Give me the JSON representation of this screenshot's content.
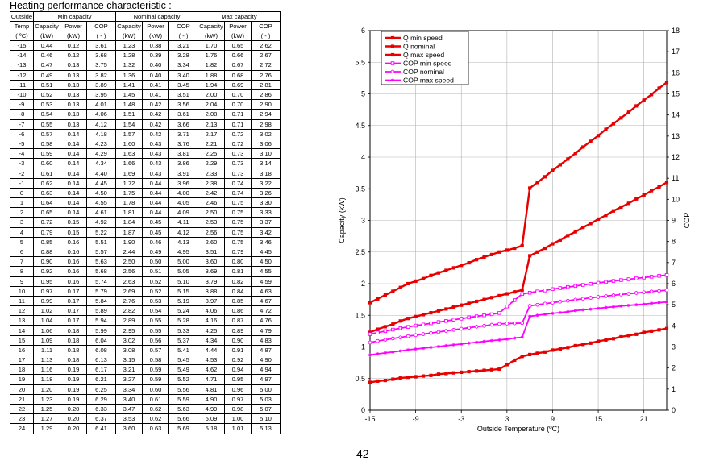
{
  "page_title": "Heating performance  characteristic  :",
  "page_number": "42",
  "table": {
    "group_headers": [
      "Outside",
      "Min capacity",
      "Nominal capacity",
      "Max capacity"
    ],
    "col_headers": [
      "Temp",
      "Capacity",
      "Power",
      "COP",
      "Capacity",
      "Power",
      "COP",
      "Capacity",
      "Power",
      "COP"
    ],
    "unit_headers": [
      "( ºC)",
      "(kW)",
      "(kW)",
      "( - )",
      "(kW)",
      "(kW)",
      "( - )",
      "(kW)",
      "(kW)",
      "( - )"
    ],
    "rows": [
      [
        "-15",
        "0.44",
        "0.12",
        "3.61",
        "1.23",
        "0.38",
        "3.21",
        "1.70",
        "0.65",
        "2.62"
      ],
      [
        "-14",
        "0.46",
        "0.12",
        "3.68",
        "1.28",
        "0.39",
        "3.28",
        "1.76",
        "0.66",
        "2.67"
      ],
      [
        "-13",
        "0.47",
        "0.13",
        "3.75",
        "1.32",
        "0.40",
        "3.34",
        "1.82",
        "0.67",
        "2.72"
      ],
      [
        "-12",
        "0.49",
        "0.13",
        "3.82",
        "1.36",
        "0.40",
        "3.40",
        "1.88",
        "0.68",
        "2.76"
      ],
      [
        "-11",
        "0.51",
        "0.13",
        "3.89",
        "1.41",
        "0.41",
        "3.45",
        "1.94",
        "0.69",
        "2.81"
      ],
      [
        "-10",
        "0.52",
        "0.13",
        "3.95",
        "1.45",
        "0.41",
        "3.51",
        "2.00",
        "0.70",
        "2.86"
      ],
      [
        "-9",
        "0.53",
        "0.13",
        "4.01",
        "1.48",
        "0.42",
        "3.56",
        "2.04",
        "0.70",
        "2.90"
      ],
      [
        "-8",
        "0.54",
        "0.13",
        "4.06",
        "1.51",
        "0.42",
        "3.61",
        "2.08",
        "0.71",
        "2.94"
      ],
      [
        "-7",
        "0.55",
        "0.13",
        "4.12",
        "1.54",
        "0.42",
        "3.66",
        "2.13",
        "0.71",
        "2.98"
      ],
      [
        "-6",
        "0.57",
        "0.14",
        "4.18",
        "1.57",
        "0.42",
        "3.71",
        "2.17",
        "0.72",
        "3.02"
      ],
      [
        "-5",
        "0.58",
        "0.14",
        "4.23",
        "1.60",
        "0.43",
        "3.76",
        "2.21",
        "0.72",
        "3.06"
      ],
      [
        "-4",
        "0.59",
        "0.14",
        "4.29",
        "1.63",
        "0.43",
        "3.81",
        "2.25",
        "0.73",
        "3.10"
      ],
      [
        "-3",
        "0.60",
        "0.14",
        "4.34",
        "1.66",
        "0.43",
        "3.86",
        "2.29",
        "0.73",
        "3.14"
      ],
      [
        "-2",
        "0.61",
        "0.14",
        "4.40",
        "1.69",
        "0.43",
        "3.91",
        "2.33",
        "0.73",
        "3.18"
      ],
      [
        "-1",
        "0.62",
        "0.14",
        "4.45",
        "1.72",
        "0.44",
        "3.96",
        "2.38",
        "0.74",
        "3.22"
      ],
      [
        "0",
        "0.63",
        "0.14",
        "4.50",
        "1.75",
        "0.44",
        "4.00",
        "2.42",
        "0.74",
        "3.26"
      ],
      [
        "1",
        "0.64",
        "0.14",
        "4.55",
        "1.78",
        "0.44",
        "4.05",
        "2.46",
        "0.75",
        "3.30"
      ],
      [
        "2",
        "0.65",
        "0.14",
        "4.61",
        "1.81",
        "0.44",
        "4.09",
        "2.50",
        "0.75",
        "3.33"
      ],
      [
        "3",
        "0.72",
        "0.15",
        "4.92",
        "1.84",
        "0.45",
        "4.11",
        "2.53",
        "0.75",
        "3.37"
      ],
      [
        "4",
        "0.79",
        "0.15",
        "5.22",
        "1.87",
        "0.45",
        "4.12",
        "2.56",
        "0.75",
        "3.42"
      ],
      [
        "5",
        "0.85",
        "0.16",
        "5.51",
        "1.90",
        "0.46",
        "4.13",
        "2.60",
        "0.75",
        "3.46"
      ],
      [
        "6",
        "0.88",
        "0.16",
        "5.57",
        "2.44",
        "0.49",
        "4.95",
        "3.51",
        "0.79",
        "4.45"
      ],
      [
        "7",
        "0.90",
        "0.16",
        "5.63",
        "2.50",
        "0.50",
        "5.00",
        "3.60",
        "0.80",
        "4.50"
      ],
      [
        "8",
        "0.92",
        "0.16",
        "5.68",
        "2.56",
        "0.51",
        "5.05",
        "3.69",
        "0.81",
        "4.55"
      ],
      [
        "9",
        "0.95",
        "0.16",
        "5.74",
        "2.63",
        "0.52",
        "5.10",
        "3.79",
        "0.82",
        "4.59"
      ],
      [
        "10",
        "0.97",
        "0.17",
        "5.79",
        "2.69",
        "0.52",
        "5.15",
        "3.88",
        "0.84",
        "4.63"
      ],
      [
        "11",
        "0.99",
        "0.17",
        "5.84",
        "2.76",
        "0.53",
        "5.19",
        "3.97",
        "0.85",
        "4.67"
      ],
      [
        "12",
        "1.02",
        "0.17",
        "5.89",
        "2.82",
        "0.54",
        "5.24",
        "4.06",
        "0.86",
        "4.72"
      ],
      [
        "13",
        "1.04",
        "0.17",
        "5.94",
        "2.89",
        "0.55",
        "5.28",
        "4.16",
        "0.87",
        "4.76"
      ],
      [
        "14",
        "1.06",
        "0.18",
        "5.99",
        "2.95",
        "0.55",
        "5.33",
        "4.25",
        "0.89",
        "4.79"
      ],
      [
        "15",
        "1.09",
        "0.18",
        "6.04",
        "3.02",
        "0.56",
        "5.37",
        "4.34",
        "0.90",
        "4.83"
      ],
      [
        "16",
        "1.11",
        "0.18",
        "6.08",
        "3.08",
        "0.57",
        "5.41",
        "4.44",
        "0.91",
        "4.87"
      ],
      [
        "17",
        "1.13",
        "0.18",
        "6.13",
        "3.15",
        "0.58",
        "5.45",
        "4.53",
        "0.92",
        "4.90"
      ],
      [
        "18",
        "1.16",
        "0.19",
        "6.17",
        "3.21",
        "0.59",
        "5.49",
        "4.62",
        "0.94",
        "4.94"
      ],
      [
        "19",
        "1.18",
        "0.19",
        "6.21",
        "3.27",
        "0.59",
        "5.52",
        "4.71",
        "0.95",
        "4.97"
      ],
      [
        "20",
        "1.20",
        "0.19",
        "6.25",
        "3.34",
        "0.60",
        "5.56",
        "4.81",
        "0.96",
        "5.00"
      ],
      [
        "21",
        "1.23",
        "0.19",
        "6.29",
        "3.40",
        "0.61",
        "5.59",
        "4.90",
        "0.97",
        "5.03"
      ],
      [
        "22",
        "1.25",
        "0.20",
        "6.33",
        "3.47",
        "0.62",
        "5.63",
        "4.99",
        "0.98",
        "5.07"
      ],
      [
        "23",
        "1.27",
        "0.20",
        "6.37",
        "3.53",
        "0.62",
        "5.66",
        "5.09",
        "1.00",
        "5.10"
      ],
      [
        "24",
        "1.29",
        "0.20",
        "6.41",
        "3.60",
        "0.63",
        "5.69",
        "5.18",
        "1.01",
        "5.13"
      ]
    ]
  },
  "chart_data": {
    "type": "line",
    "xlabel": "Outside Temperature (ºC)",
    "ylabel": "Capacity (kW)",
    "y2label": "COP",
    "xlim": [
      -15,
      24
    ],
    "ylim": [
      0,
      6
    ],
    "y2lim": [
      0,
      18
    ],
    "xticks": [
      -15,
      -9,
      -3,
      3,
      9,
      15,
      21
    ],
    "yticks": [
      0.0,
      0.5,
      1.0,
      1.5,
      2.0,
      2.5,
      3.0,
      3.5,
      4.0,
      4.5,
      5.0,
      5.5,
      6.0
    ],
    "y2ticks": [
      0,
      1,
      2,
      3,
      4,
      5,
      6,
      7,
      8,
      9,
      10,
      11,
      12,
      13,
      14,
      15,
      16,
      17,
      18
    ],
    "grid": true,
    "legend_position": "top-left",
    "x": [
      -15,
      -14,
      -13,
      -12,
      -11,
      -10,
      -9,
      -8,
      -7,
      -6,
      -5,
      -4,
      -3,
      -2,
      -1,
      0,
      1,
      2,
      3,
      4,
      5,
      6,
      7,
      8,
      9,
      10,
      11,
      12,
      13,
      14,
      15,
      16,
      17,
      18,
      19,
      20,
      21,
      22,
      23,
      24
    ],
    "series": [
      {
        "name": "Q min speed",
        "axis": "left",
        "color": "#e80000",
        "marker": "filled-square",
        "values": [
          0.44,
          0.46,
          0.47,
          0.49,
          0.51,
          0.52,
          0.53,
          0.54,
          0.55,
          0.57,
          0.58,
          0.59,
          0.6,
          0.61,
          0.62,
          0.63,
          0.64,
          0.65,
          0.72,
          0.79,
          0.85,
          0.88,
          0.9,
          0.92,
          0.95,
          0.97,
          0.99,
          1.02,
          1.04,
          1.06,
          1.09,
          1.11,
          1.13,
          1.16,
          1.18,
          1.2,
          1.23,
          1.25,
          1.27,
          1.29
        ]
      },
      {
        "name": "Q nominal",
        "axis": "left",
        "color": "#e80000",
        "marker": "filled-square",
        "values": [
          1.23,
          1.28,
          1.32,
          1.36,
          1.41,
          1.45,
          1.48,
          1.51,
          1.54,
          1.57,
          1.6,
          1.63,
          1.66,
          1.69,
          1.72,
          1.75,
          1.78,
          1.81,
          1.84,
          1.87,
          1.9,
          2.44,
          2.5,
          2.56,
          2.63,
          2.69,
          2.76,
          2.82,
          2.89,
          2.95,
          3.02,
          3.08,
          3.15,
          3.21,
          3.27,
          3.34,
          3.4,
          3.47,
          3.53,
          3.6
        ]
      },
      {
        "name": "Q max speed",
        "axis": "left",
        "color": "#e80000",
        "marker": "filled-square",
        "values": [
          1.7,
          1.76,
          1.82,
          1.88,
          1.94,
          2.0,
          2.04,
          2.08,
          2.13,
          2.17,
          2.21,
          2.25,
          2.29,
          2.33,
          2.38,
          2.42,
          2.46,
          2.5,
          2.53,
          2.56,
          2.6,
          3.51,
          3.6,
          3.69,
          3.79,
          3.88,
          3.97,
          4.06,
          4.16,
          4.25,
          4.34,
          4.44,
          4.53,
          4.62,
          4.71,
          4.81,
          4.9,
          4.99,
          5.09,
          5.18
        ]
      },
      {
        "name": "COP min speed",
        "axis": "right",
        "color": "#ff00ff",
        "marker": "open-square",
        "values": [
          3.61,
          3.68,
          3.75,
          3.82,
          3.89,
          3.95,
          4.01,
          4.06,
          4.12,
          4.18,
          4.23,
          4.29,
          4.34,
          4.4,
          4.45,
          4.5,
          4.55,
          4.61,
          4.92,
          5.22,
          5.51,
          5.57,
          5.63,
          5.68,
          5.74,
          5.79,
          5.84,
          5.89,
          5.94,
          5.99,
          6.04,
          6.08,
          6.13,
          6.17,
          6.21,
          6.25,
          6.29,
          6.33,
          6.37,
          6.41
        ]
      },
      {
        "name": "COP nominal",
        "axis": "right",
        "color": "#ff00ff",
        "marker": "open-circle",
        "values": [
          3.21,
          3.28,
          3.34,
          3.4,
          3.45,
          3.51,
          3.56,
          3.61,
          3.66,
          3.71,
          3.76,
          3.81,
          3.86,
          3.91,
          3.96,
          4.0,
          4.05,
          4.09,
          4.11,
          4.12,
          4.13,
          4.95,
          5.0,
          5.05,
          5.1,
          5.15,
          5.19,
          5.24,
          5.28,
          5.33,
          5.37,
          5.41,
          5.45,
          5.49,
          5.52,
          5.56,
          5.59,
          5.63,
          5.66,
          5.69
        ]
      },
      {
        "name": "COP max speed",
        "axis": "right",
        "color": "#ff00ff",
        "marker": "asterisk",
        "values": [
          2.62,
          2.67,
          2.72,
          2.76,
          2.81,
          2.86,
          2.9,
          2.94,
          2.98,
          3.02,
          3.06,
          3.1,
          3.14,
          3.18,
          3.22,
          3.26,
          3.3,
          3.33,
          3.37,
          3.42,
          3.46,
          4.45,
          4.5,
          4.55,
          4.59,
          4.63,
          4.67,
          4.72,
          4.76,
          4.79,
          4.83,
          4.87,
          4.9,
          4.94,
          4.97,
          5.0,
          5.03,
          5.07,
          5.1,
          5.13
        ]
      }
    ]
  }
}
